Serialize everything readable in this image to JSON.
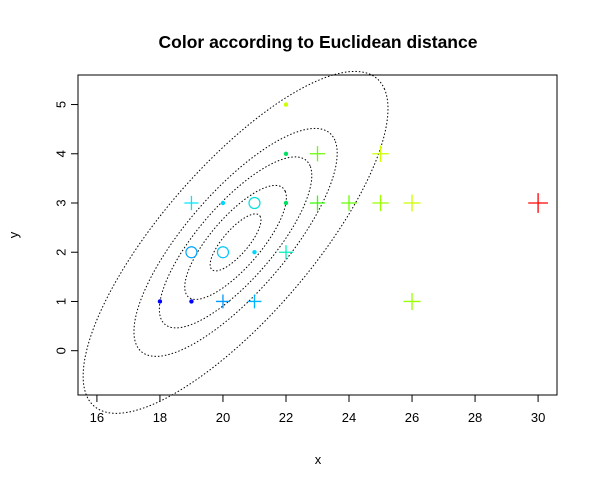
{
  "chart_data": {
    "type": "scatter",
    "title": "Color according to Euclidean distance",
    "xlabel": "x",
    "ylabel": "y",
    "xlim": [
      15.4,
      30.6
    ],
    "ylim": [
      -0.9,
      5.6
    ],
    "x_ticks": [
      16,
      18,
      20,
      22,
      24,
      26,
      28,
      30
    ],
    "y_ticks": [
      0,
      1,
      2,
      3,
      4,
      5
    ],
    "grid": false,
    "legend": "none",
    "center": {
      "x": 20.4,
      "y": 2.2
    },
    "covariance": {
      "sxx": 2.6,
      "syy": 1.34,
      "sxy": 1.46
    },
    "contour_levels": [
      0.5,
      1,
      1.5,
      2,
      3
    ],
    "contour_style": "dotted",
    "points": [
      {
        "x": 18,
        "y": 1,
        "marker": "dot",
        "color": "#0000ff"
      },
      {
        "x": 19,
        "y": 1,
        "marker": "dot",
        "color": "#0000ff"
      },
      {
        "x": 20,
        "y": 1,
        "marker": "plus",
        "color": "#0099ff"
      },
      {
        "x": 21,
        "y": 1,
        "marker": "plus",
        "color": "#00b3ff"
      },
      {
        "x": 19,
        "y": 2,
        "marker": "circle",
        "color": "#00a2ff"
      },
      {
        "x": 20,
        "y": 2,
        "marker": "circle",
        "color": "#00c4ff"
      },
      {
        "x": 21,
        "y": 2,
        "marker": "dot",
        "color": "#00d7ff"
      },
      {
        "x": 22,
        "y": 2,
        "marker": "plus",
        "color": "#00f0c0"
      },
      {
        "x": 19,
        "y": 3,
        "marker": "plus",
        "color": "#00e6ff"
      },
      {
        "x": 20,
        "y": 3,
        "marker": "dot",
        "color": "#00d8ff"
      },
      {
        "x": 21,
        "y": 3,
        "marker": "circle",
        "color": "#00e0e0"
      },
      {
        "x": 22,
        "y": 3,
        "marker": "dot",
        "color": "#00e060"
      },
      {
        "x": 23,
        "y": 3,
        "marker": "plus",
        "color": "#33ff00"
      },
      {
        "x": 24,
        "y": 3,
        "marker": "plus",
        "color": "#66ff00"
      },
      {
        "x": 25,
        "y": 3,
        "marker": "plus",
        "color": "#99ff00"
      },
      {
        "x": 26,
        "y": 3,
        "marker": "plus",
        "color": "#ccff00"
      },
      {
        "x": 30,
        "y": 3,
        "marker": "plus",
        "color": "#ff0000"
      },
      {
        "x": 22,
        "y": 4,
        "marker": "dot",
        "color": "#00e060"
      },
      {
        "x": 23,
        "y": 4,
        "marker": "plus",
        "color": "#66ff00"
      },
      {
        "x": 25,
        "y": 4,
        "marker": "plus",
        "color": "#ccff00"
      },
      {
        "x": 22,
        "y": 5,
        "marker": "dot",
        "color": "#ccff00"
      },
      {
        "x": 26,
        "y": 1,
        "marker": "plus",
        "color": "#99ff00"
      }
    ]
  }
}
